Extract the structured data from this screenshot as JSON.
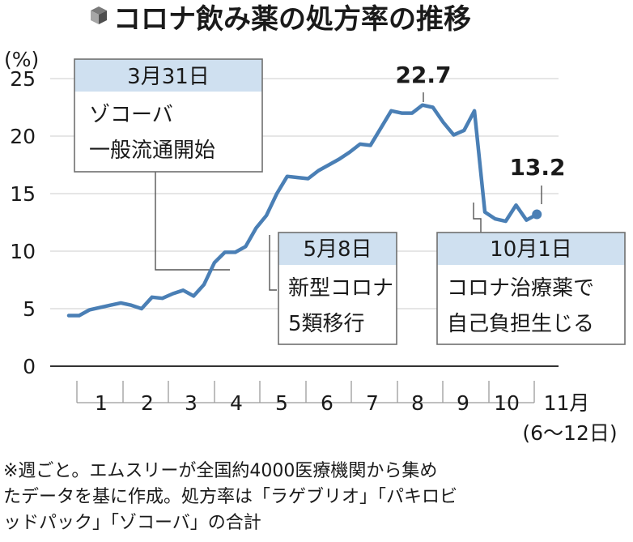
{
  "title": "コロナ飲み薬の処方率の推移",
  "chart_data": {
    "type": "line",
    "unit_label": "(%)",
    "ylim": [
      0,
      25
    ],
    "y_ticks": [
      0,
      5,
      10,
      15,
      20,
      25
    ],
    "x_ticks": [
      {
        "label": "1",
        "week": 2
      },
      {
        "label": "2",
        "week": 6.5
      },
      {
        "label": "3",
        "week": 11
      },
      {
        "label": "4",
        "week": 15.5
      },
      {
        "label": "5",
        "week": 20
      },
      {
        "label": "6",
        "week": 24.5
      },
      {
        "label": "7",
        "week": 29
      },
      {
        "label": "8",
        "week": 33.5
      },
      {
        "label": "9",
        "week": 38
      },
      {
        "label": "10",
        "week": 42.5
      },
      {
        "label": "11月",
        "week": 47
      }
    ],
    "x_sublabel": "(6〜12日)",
    "values": [
      4.4,
      4.4,
      4.9,
      5.1,
      5.3,
      5.5,
      5.3,
      5.0,
      6.0,
      5.9,
      6.3,
      6.6,
      6.1,
      7.1,
      9.0,
      9.9,
      9.9,
      10.4,
      12.0,
      13.1,
      15.0,
      16.5,
      16.4,
      16.3,
      17.0,
      17.5,
      18.0,
      18.6,
      19.3,
      19.2,
      20.7,
      22.2,
      22.0,
      22.0,
      22.7,
      22.5,
      21.2,
      20.1,
      20.5,
      22.2,
      13.4,
      12.8,
      12.6,
      14.0,
      12.7,
      13.2
    ],
    "peak_label": "22.7",
    "last_label": "13.2",
    "annotations": [
      {
        "date": "3月31日",
        "lines": [
          "ゾコーバ",
          "一般流通開始"
        ]
      },
      {
        "date": "5月8日",
        "lines": [
          "新型コロナ",
          "5類移行"
        ]
      },
      {
        "date": "10月1日",
        "lines": [
          "コロナ治療薬で",
          "自己負担生じる"
        ]
      }
    ]
  },
  "note_lines": [
    "※週ごと。エムスリーが全国約4000医療機関から集め",
    "たデータを基に作成。処方率は「ラゲブリオ」「パキロビ",
    "ッドパック」「ゾコーバ」の合計"
  ],
  "colors": {
    "line": "#4a7fb5",
    "marker": "#4a7fb5",
    "box_header": "#cfe0f0",
    "box_border": "#6f6f6f",
    "grid": "#d6d6d6"
  }
}
